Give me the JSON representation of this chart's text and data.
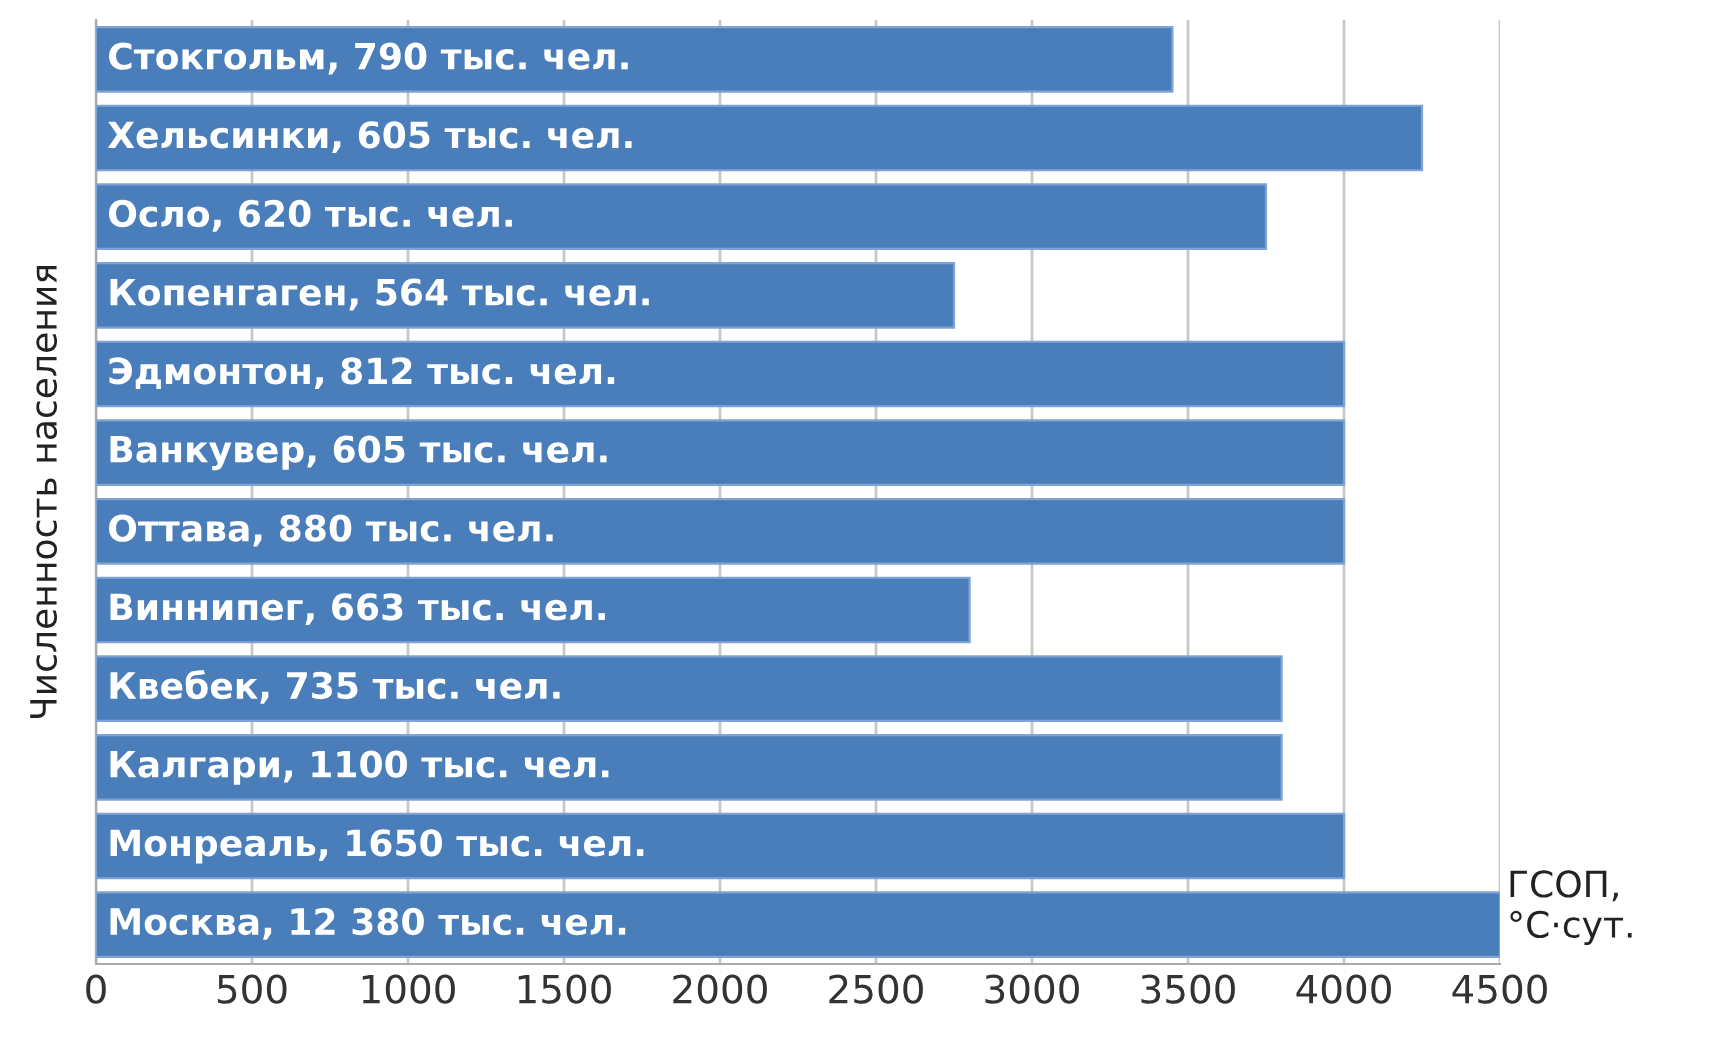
{
  "chart_data": {
    "type": "bar",
    "orientation": "horizontal",
    "ylabel": "Численность населения",
    "xlabel": "ГСОП,\n°С·сут.",
    "categories": [
      "Стокгольм, 790 тыс. чел.",
      "Хельсинки, 605 тыс. чел.",
      "Осло, 620 тыс. чел.",
      "Копенгаген, 564 тыс. чел.",
      "Эдмонтон, 812 тыс. чел.",
      "Ванкувер, 605 тыс. чел.",
      "Оттава, 880 тыс. чел.",
      "Виннипег, 663 тыс. чел.",
      "Квебек, 735 тыс. чел.",
      "Калгари, 1100 тыс. чел.",
      "Монреаль, 1650 тыс. чел.",
      "Москва, 12 380 тыс. чел."
    ],
    "values": [
      3450,
      4250,
      3750,
      2750,
      4000,
      4000,
      4000,
      2800,
      3800,
      3800,
      4000,
      4500
    ],
    "color": "#4a7ebb",
    "xlim": [
      0,
      4500
    ],
    "xticks": [
      0,
      500,
      1000,
      1500,
      2000,
      2500,
      3000,
      3500,
      4000,
      4500
    ],
    "grid": "x"
  }
}
